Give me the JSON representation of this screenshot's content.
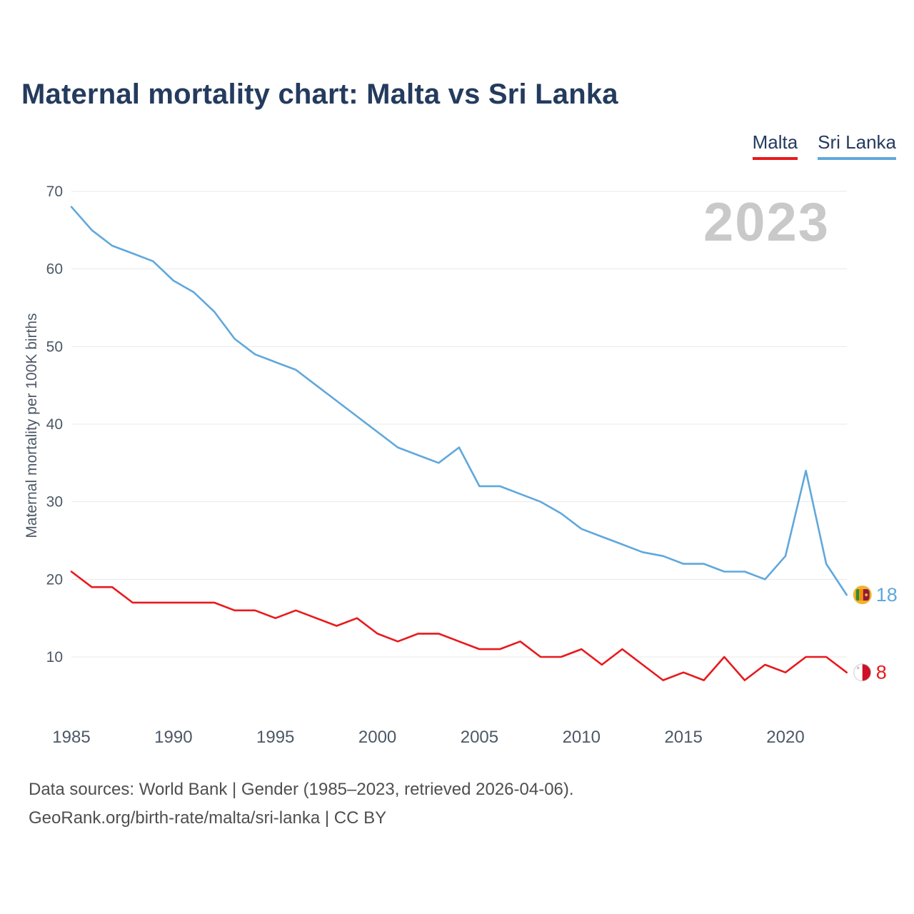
{
  "title": "Maternal mortality chart: Malta vs Sri Lanka",
  "watermark": "2023",
  "legend": {
    "items": [
      {
        "label": "Malta",
        "color": "#e8191c"
      },
      {
        "label": "Sri Lanka",
        "color": "#5fa8dc"
      }
    ]
  },
  "footer": {
    "line1": "Data sources: World Bank | Gender (1985–2023, retrieved 2026-04-06).",
    "line2": "GeoRank.org/birth-rate/malta/sri-lanka | CC BY"
  },
  "chart_data": {
    "type": "line",
    "title": "Maternal mortality chart: Malta vs Sri Lanka",
    "xlabel": "",
    "ylabel": "Maternal mortality per 100K births",
    "grid": "horizontal",
    "legend_position": "top-right",
    "ylim": [
      5,
      72
    ],
    "yticks": [
      10,
      20,
      30,
      40,
      50,
      60,
      70
    ],
    "xticks": [
      1985,
      1990,
      1995,
      2000,
      2005,
      2010,
      2015,
      2020
    ],
    "x": [
      1985,
      1986,
      1987,
      1988,
      1989,
      1990,
      1991,
      1992,
      1993,
      1994,
      1995,
      1996,
      1997,
      1998,
      1999,
      2000,
      2001,
      2002,
      2003,
      2004,
      2005,
      2006,
      2007,
      2008,
      2009,
      2010,
      2011,
      2012,
      2013,
      2014,
      2015,
      2016,
      2017,
      2018,
      2019,
      2020,
      2021,
      2022,
      2023
    ],
    "series": [
      {
        "id": "sri-lanka",
        "name": "Sri Lanka",
        "color": "#5fa8dc",
        "end_label": "18",
        "values": [
          68,
          65,
          63,
          62,
          61,
          58.5,
          57,
          54.5,
          51,
          49,
          48,
          47,
          45,
          43,
          41,
          39,
          37,
          36,
          35,
          37,
          32,
          32,
          31,
          30,
          28.5,
          26.5,
          25.5,
          24.5,
          23.5,
          23,
          22,
          22,
          21,
          21,
          20,
          23,
          34,
          22,
          18
        ]
      },
      {
        "id": "malta",
        "name": "Malta",
        "color": "#e8191c",
        "end_label": "8",
        "values": [
          21,
          19,
          19,
          17,
          17,
          17,
          17,
          17,
          16,
          16,
          15,
          16,
          15,
          14,
          15,
          13,
          12,
          13,
          13,
          12,
          11,
          11,
          12,
          10,
          10,
          11,
          9,
          11,
          9,
          7,
          8,
          7,
          10,
          7,
          9,
          8,
          10,
          10,
          8
        ]
      }
    ]
  }
}
